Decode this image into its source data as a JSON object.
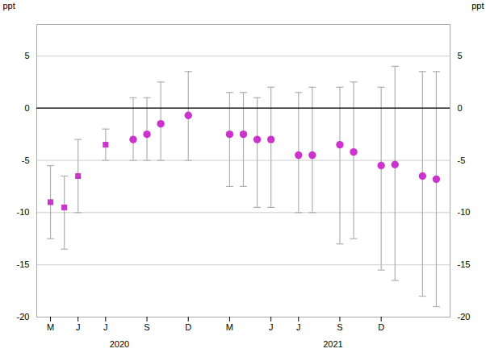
{
  "chart_data": {
    "type": "scatter",
    "ylabel": "ppt",
    "y2label": "ppt",
    "xlim": [
      -1,
      29
    ],
    "xticks": [
      {
        "value": 0,
        "label": "M"
      },
      {
        "value": 2,
        "label": "J"
      },
      {
        "value": 4,
        "label": "J"
      },
      {
        "value": 7,
        "label": "S"
      },
      {
        "value": 10,
        "label": "D"
      },
      {
        "value": 13,
        "label": "M"
      },
      {
        "value": 16,
        "label": "J"
      },
      {
        "value": 18,
        "label": "J"
      },
      {
        "value": 21,
        "label": "S"
      },
      {
        "value": 24,
        "label": "D"
      }
    ],
    "ylim": [
      -20,
      8
    ],
    "yticks": [
      5,
      0,
      -5,
      -10,
      -15,
      -20
    ],
    "y2lim": [
      -20,
      8
    ],
    "y2ticks": [
      5,
      0,
      -5,
      -10,
      -15,
      -20
    ],
    "grid": true,
    "errorbar_color": "#b0b0b0",
    "series": [
      {
        "marker": "square",
        "color": "#cc33cc",
        "x": [
          0,
          1,
          2,
          4
        ],
        "values": [
          -9.0,
          -9.5,
          -6.5,
          -3.5
        ],
        "error_lower": [
          -12.5,
          -13.5,
          -10.0,
          -5.0
        ],
        "error_upper": [
          -5.5,
          -6.5,
          -3.0,
          -2.0
        ]
      },
      {
        "marker": "circle",
        "color": "#cc33cc",
        "x": [
          6,
          7,
          8,
          10,
          13,
          14,
          15,
          16,
          18,
          19,
          21,
          22,
          24,
          25,
          27,
          28
        ],
        "values": [
          -3.0,
          -2.5,
          -1.5,
          -0.7,
          -2.5,
          -2.5,
          -3.0,
          -3.0,
          -4.5,
          -4.5,
          -3.5,
          -4.2,
          -5.5,
          -5.4,
          -6.5,
          -6.8
        ],
        "error_lower": [
          -5.0,
          -5.0,
          -5.0,
          -5.0,
          -7.5,
          -7.5,
          -9.5,
          -9.5,
          -10.0,
          -10.0,
          -13.0,
          -12.5,
          -15.5,
          -16.5,
          -18.0,
          -19.0
        ],
        "error_upper": [
          1.0,
          1.0,
          2.5,
          3.5,
          1.5,
          1.5,
          1.0,
          2.0,
          1.5,
          2.0,
          2.0,
          2.5,
          2.0,
          4.0,
          3.5,
          3.5
        ]
      }
    ],
    "annotations": [
      {
        "text": "2020",
        "x": 5.0
      },
      {
        "text": "2021",
        "x": 20.5
      }
    ]
  }
}
